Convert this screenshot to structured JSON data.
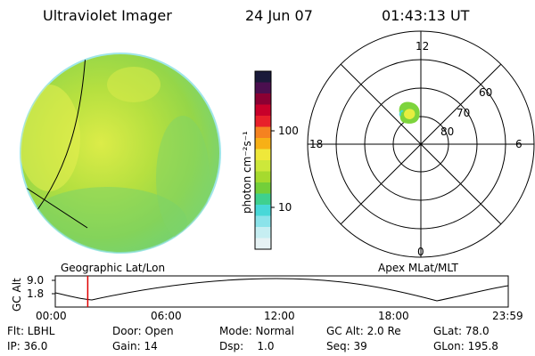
{
  "header": {
    "instrument": "Ultraviolet Imager",
    "date": "24 Jun 07",
    "time": "01:43:13 UT"
  },
  "colorbar": {
    "unit_label": "photon cm⁻²s⁻¹",
    "ticks": [
      "100",
      "10"
    ],
    "colors": [
      "#1a1a3a",
      "#4b0f4f",
      "#8b0033",
      "#c8002a",
      "#e8202a",
      "#f58220",
      "#f7b016",
      "#efe83a",
      "#cde83a",
      "#a6da2e",
      "#73cf3a",
      "#3fd08e",
      "#48d8d8",
      "#8be3ea",
      "#c6eef2",
      "#e6f2f4"
    ]
  },
  "polar_plot": {
    "mlt_labels": {
      "top": "12",
      "left": "18",
      "right": "6",
      "bottom": "0"
    },
    "lat_labels": [
      "60",
      "70",
      "80"
    ]
  },
  "alt_plot": {
    "left_label": "Geographic Lat/Lon",
    "right_label": "Apex MLat/MLT",
    "axis_label": "GC Alt",
    "y_ticks": [
      "9.0",
      "1.8"
    ],
    "x_ticks": [
      "00:00",
      "06:00",
      "12:00",
      "18:00",
      "23:59"
    ],
    "marker_time_fraction": 0.0717
  },
  "status": {
    "flt": "Flt: LBHL",
    "door": "Door: Open",
    "mode": "Mode: Normal",
    "gc_alt": "GC Alt: 2.0 Re",
    "glat": "GLat: 78.0",
    "ip": "IP: 36.0",
    "gain": "Gain: 14",
    "dsp": "Dsp:    1.0",
    "seq": "Seq: 39",
    "glon": "GLon: 195.8"
  }
}
